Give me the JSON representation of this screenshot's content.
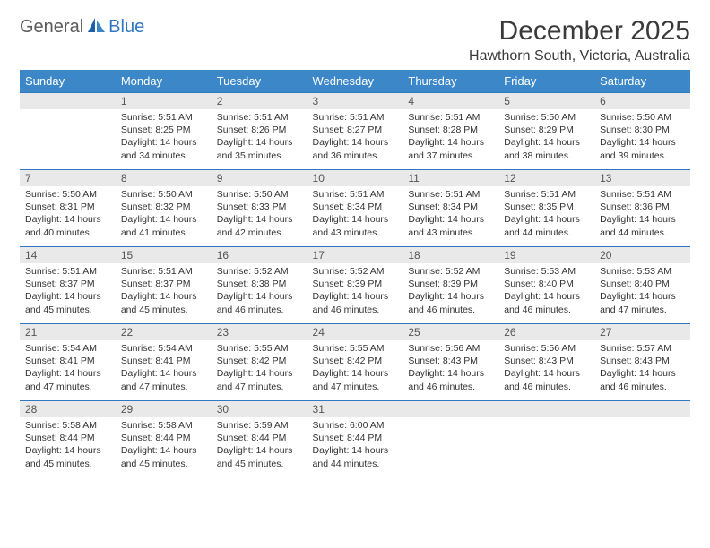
{
  "logo": {
    "general": "General",
    "blue": "Blue"
  },
  "title": "December 2025",
  "location": "Hawthorn South, Victoria, Australia",
  "colors": {
    "header_bg": "#3b87c8",
    "header_text": "#ffffff",
    "daynum_bg": "#e9e9e9",
    "row_border": "#2f78c2",
    "title_color": "#3a3a3a",
    "logo_blue": "#2f78c2",
    "logo_gray": "#5a5a5a"
  },
  "weekdays": [
    "Sunday",
    "Monday",
    "Tuesday",
    "Wednesday",
    "Thursday",
    "Friday",
    "Saturday"
  ],
  "first_weekday_index": 1,
  "days": [
    {
      "n": 1,
      "sunrise": "5:51 AM",
      "sunset": "8:25 PM",
      "daylight": "14 hours and 34 minutes."
    },
    {
      "n": 2,
      "sunrise": "5:51 AM",
      "sunset": "8:26 PM",
      "daylight": "14 hours and 35 minutes."
    },
    {
      "n": 3,
      "sunrise": "5:51 AM",
      "sunset": "8:27 PM",
      "daylight": "14 hours and 36 minutes."
    },
    {
      "n": 4,
      "sunrise": "5:51 AM",
      "sunset": "8:28 PM",
      "daylight": "14 hours and 37 minutes."
    },
    {
      "n": 5,
      "sunrise": "5:50 AM",
      "sunset": "8:29 PM",
      "daylight": "14 hours and 38 minutes."
    },
    {
      "n": 6,
      "sunrise": "5:50 AM",
      "sunset": "8:30 PM",
      "daylight": "14 hours and 39 minutes."
    },
    {
      "n": 7,
      "sunrise": "5:50 AM",
      "sunset": "8:31 PM",
      "daylight": "14 hours and 40 minutes."
    },
    {
      "n": 8,
      "sunrise": "5:50 AM",
      "sunset": "8:32 PM",
      "daylight": "14 hours and 41 minutes."
    },
    {
      "n": 9,
      "sunrise": "5:50 AM",
      "sunset": "8:33 PM",
      "daylight": "14 hours and 42 minutes."
    },
    {
      "n": 10,
      "sunrise": "5:51 AM",
      "sunset": "8:34 PM",
      "daylight": "14 hours and 43 minutes."
    },
    {
      "n": 11,
      "sunrise": "5:51 AM",
      "sunset": "8:34 PM",
      "daylight": "14 hours and 43 minutes."
    },
    {
      "n": 12,
      "sunrise": "5:51 AM",
      "sunset": "8:35 PM",
      "daylight": "14 hours and 44 minutes."
    },
    {
      "n": 13,
      "sunrise": "5:51 AM",
      "sunset": "8:36 PM",
      "daylight": "14 hours and 44 minutes."
    },
    {
      "n": 14,
      "sunrise": "5:51 AM",
      "sunset": "8:37 PM",
      "daylight": "14 hours and 45 minutes."
    },
    {
      "n": 15,
      "sunrise": "5:51 AM",
      "sunset": "8:37 PM",
      "daylight": "14 hours and 45 minutes."
    },
    {
      "n": 16,
      "sunrise": "5:52 AM",
      "sunset": "8:38 PM",
      "daylight": "14 hours and 46 minutes."
    },
    {
      "n": 17,
      "sunrise": "5:52 AM",
      "sunset": "8:39 PM",
      "daylight": "14 hours and 46 minutes."
    },
    {
      "n": 18,
      "sunrise": "5:52 AM",
      "sunset": "8:39 PM",
      "daylight": "14 hours and 46 minutes."
    },
    {
      "n": 19,
      "sunrise": "5:53 AM",
      "sunset": "8:40 PM",
      "daylight": "14 hours and 46 minutes."
    },
    {
      "n": 20,
      "sunrise": "5:53 AM",
      "sunset": "8:40 PM",
      "daylight": "14 hours and 47 minutes."
    },
    {
      "n": 21,
      "sunrise": "5:54 AM",
      "sunset": "8:41 PM",
      "daylight": "14 hours and 47 minutes."
    },
    {
      "n": 22,
      "sunrise": "5:54 AM",
      "sunset": "8:41 PM",
      "daylight": "14 hours and 47 minutes."
    },
    {
      "n": 23,
      "sunrise": "5:55 AM",
      "sunset": "8:42 PM",
      "daylight": "14 hours and 47 minutes."
    },
    {
      "n": 24,
      "sunrise": "5:55 AM",
      "sunset": "8:42 PM",
      "daylight": "14 hours and 47 minutes."
    },
    {
      "n": 25,
      "sunrise": "5:56 AM",
      "sunset": "8:43 PM",
      "daylight": "14 hours and 46 minutes."
    },
    {
      "n": 26,
      "sunrise": "5:56 AM",
      "sunset": "8:43 PM",
      "daylight": "14 hours and 46 minutes."
    },
    {
      "n": 27,
      "sunrise": "5:57 AM",
      "sunset": "8:43 PM",
      "daylight": "14 hours and 46 minutes."
    },
    {
      "n": 28,
      "sunrise": "5:58 AM",
      "sunset": "8:44 PM",
      "daylight": "14 hours and 45 minutes."
    },
    {
      "n": 29,
      "sunrise": "5:58 AM",
      "sunset": "8:44 PM",
      "daylight": "14 hours and 45 minutes."
    },
    {
      "n": 30,
      "sunrise": "5:59 AM",
      "sunset": "8:44 PM",
      "daylight": "14 hours and 45 minutes."
    },
    {
      "n": 31,
      "sunrise": "6:00 AM",
      "sunset": "8:44 PM",
      "daylight": "14 hours and 44 minutes."
    }
  ],
  "labels": {
    "sunrise": "Sunrise:",
    "sunset": "Sunset:",
    "daylight": "Daylight:"
  }
}
